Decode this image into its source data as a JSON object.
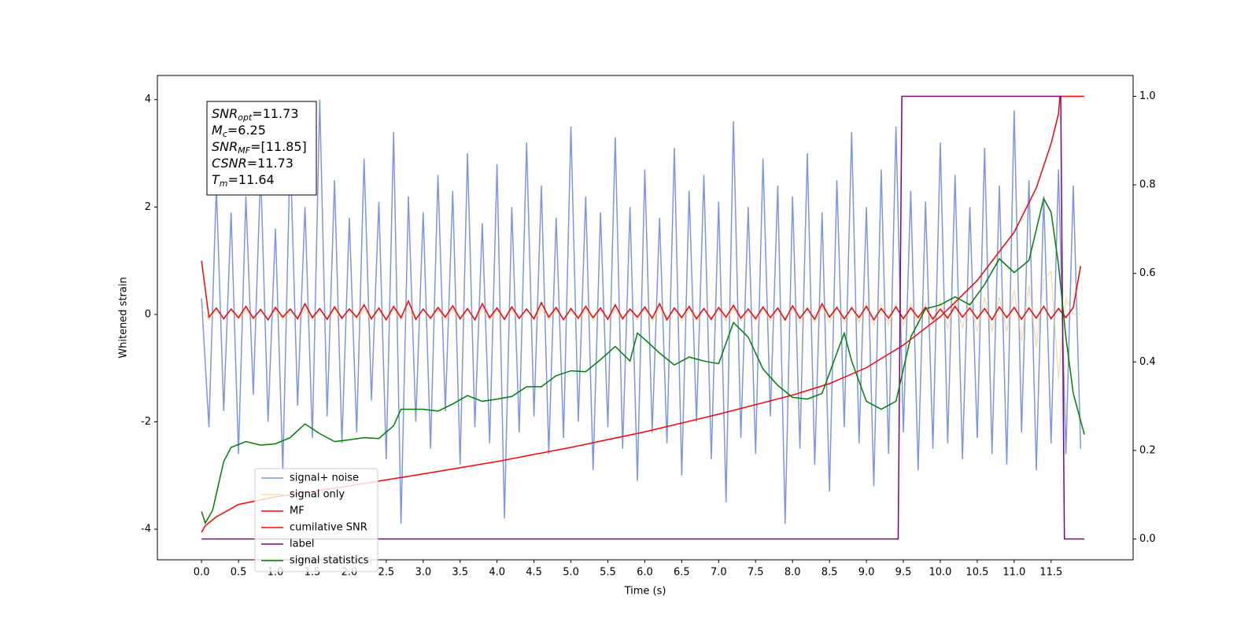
{
  "chart_data": {
    "type": "line",
    "xlabel": "Time (s)",
    "ylabel": "Whitened strain",
    "xlim": [
      -0.598,
      12.61
    ],
    "ylim": [
      -4.57,
      4.45
    ],
    "y2lim": [
      -0.047,
      1.047
    ],
    "xticks": [
      {
        "value": 0,
        "label": "0.0"
      },
      0.5,
      {
        "value": 1,
        "label": "1.0"
      },
      1.5,
      {
        "value": 2,
        "label": "2.0"
      },
      2.5,
      {
        "value": 3,
        "label": "3.0"
      },
      3.5,
      {
        "value": 4,
        "label": "4.0"
      },
      4.5,
      {
        "value": 5,
        "label": "5.0"
      },
      5.5,
      {
        "value": 6,
        "label": "6.0"
      },
      6.5,
      {
        "value": 7,
        "label": "7.0"
      },
      7.5,
      {
        "value": 8,
        "label": "8.0"
      },
      8.5,
      {
        "value": 9,
        "label": "9.0"
      },
      9.5,
      {
        "value": 10,
        "label": "10.0"
      },
      10.5,
      {
        "value": 11,
        "label": "11.0"
      },
      11.5
    ],
    "yticks": [
      -4,
      -2,
      0,
      2,
      4
    ],
    "y2ticks": [
      {
        "value": 0,
        "label": "0.0"
      },
      0.2,
      0.4,
      0.6,
      0.8,
      {
        "value": 1,
        "label": "1.0"
      }
    ],
    "legend": "lower left",
    "annotations": [
      {
        "symbol": "SNR",
        "subscript": "opt",
        "text": "=11.73"
      },
      {
        "symbol": "M",
        "subscript": "c",
        "text": "=6.25"
      },
      {
        "symbol": "SNR",
        "subscript": "MF",
        "text": "=[11.85]"
      },
      {
        "symbol": "CSNR",
        "subscript": "",
        "text": "=11.73"
      },
      {
        "symbol": "T",
        "subscript": "m",
        "text": "=11.64"
      }
    ],
    "series": [
      {
        "name": "signal+ noise",
        "color": "#7b95e7",
        "x": [
          0,
          0.1,
          0.2,
          0.3,
          0.4,
          0.5,
          0.6,
          0.7,
          0.8,
          0.9,
          1,
          1.1,
          1.2,
          1.3,
          1.4,
          1.5,
          1.6,
          1.7,
          1.8,
          1.9,
          2,
          2.1,
          2.2,
          2.3,
          2.4,
          2.5,
          2.6,
          2.7,
          2.8,
          2.9,
          3,
          3.1,
          3.2,
          3.3,
          3.4,
          3.5,
          3.6,
          3.7,
          3.8,
          3.9,
          4,
          4.1,
          4.2,
          4.3,
          4.4,
          4.5,
          4.6,
          4.7,
          4.8,
          4.9,
          5,
          5.1,
          5.2,
          5.3,
          5.4,
          5.5,
          5.6,
          5.7,
          5.8,
          5.9,
          6,
          6.1,
          6.2,
          6.3,
          6.4,
          6.5,
          6.6,
          6.7,
          6.8,
          6.9,
          7,
          7.1,
          7.2,
          7.3,
          7.4,
          7.5,
          7.6,
          7.7,
          7.8,
          7.9,
          8,
          8.1,
          8.2,
          8.3,
          8.4,
          8.5,
          8.6,
          8.7,
          8.8,
          8.9,
          9,
          9.1,
          9.2,
          9.3,
          9.4,
          9.5,
          9.6,
          9.7,
          9.8,
          9.9,
          10,
          10.1,
          10.2,
          10.3,
          10.4,
          10.5,
          10.6,
          10.7,
          10.8,
          10.9,
          11,
          11.1,
          11.2,
          11.3,
          11.4,
          11.5,
          11.6,
          11.7,
          11.8,
          11.9
        ],
        "values": [
          0.3,
          -2.1,
          2.4,
          -1.8,
          1.9,
          -2.6,
          2.2,
          -1.5,
          2.7,
          -2.0,
          1.6,
          -2.9,
          3.1,
          -1.7,
          2.0,
          -2.3,
          4.0,
          -1.9,
          2.5,
          -2.4,
          1.8,
          -2.2,
          2.9,
          -1.6,
          2.1,
          -2.7,
          3.4,
          -3.9,
          2.2,
          -2.0,
          1.9,
          -2.5,
          2.6,
          -1.8,
          2.3,
          -2.8,
          3.0,
          -2.1,
          1.7,
          -2.4,
          2.8,
          -3.8,
          2.0,
          -2.2,
          3.2,
          -1.9,
          2.4,
          -2.6,
          1.8,
          -2.3,
          3.5,
          -2.0,
          2.2,
          -2.9,
          1.9,
          -2.1,
          3.3,
          -2.5,
          2.0,
          -3.1,
          2.7,
          -2.2,
          1.8,
          -2.4,
          3.1,
          -3.0,
          2.3,
          -2.0,
          2.6,
          -2.7,
          2.1,
          -3.5,
          3.6,
          -2.3,
          2.0,
          -2.6,
          2.9,
          -1.9,
          2.4,
          -3.9,
          2.2,
          -2.5,
          3.0,
          -2.8,
          1.9,
          -3.3,
          2.5,
          -2.1,
          3.4,
          -2.4,
          2.0,
          -3.2,
          2.7,
          -2.6,
          3.5,
          -2.2,
          2.3,
          -2.9,
          2.1,
          -2.5,
          3.2,
          -2.4,
          2.6,
          -2.7,
          2.0,
          -2.3,
          3.1,
          -2.6,
          2.4,
          -2.8,
          3.8,
          -2.2,
          2.5,
          -2.9,
          2.2,
          -2.4,
          2.7,
          -2.6,
          2.4,
          -2.5
        ]
      },
      {
        "name": "signal only",
        "color": "#f7c978",
        "x": [
          0,
          0.1,
          0.2,
          0.3,
          0.4,
          0.5,
          0.6,
          0.7,
          0.8,
          0.9,
          1,
          1.1,
          1.2,
          1.3,
          1.4,
          1.5,
          1.6,
          1.7,
          1.8,
          1.9,
          2,
          2.1,
          2.2,
          2.3,
          2.4,
          2.5,
          2.6,
          2.7,
          2.8,
          2.9,
          3,
          3.1,
          3.2,
          3.3,
          3.4,
          3.5,
          3.6,
          3.7,
          3.8,
          3.9,
          4,
          4.1,
          4.2,
          4.3,
          4.4,
          4.5,
          4.6,
          4.7,
          4.8,
          4.9,
          5,
          5.1,
          5.2,
          5.3,
          5.4,
          5.5,
          5.6,
          5.7,
          5.8,
          5.9,
          6,
          6.1,
          6.2,
          6.3,
          6.4,
          6.5,
          6.6,
          6.7,
          6.8,
          6.9,
          7,
          7.1,
          7.2,
          7.3,
          7.4,
          7.5,
          7.6,
          7.7,
          7.8,
          7.9,
          8,
          8.1,
          8.2,
          8.3,
          8.4,
          8.5,
          8.6,
          8.7,
          8.8,
          8.9,
          9,
          9.1,
          9.2,
          9.3,
          9.4,
          9.5,
          9.6,
          9.7,
          9.8,
          9.9,
          10,
          10.1,
          10.2,
          10.3,
          10.4,
          10.5,
          10.6,
          10.7,
          10.8,
          10.9,
          11,
          11.1,
          11.2,
          11.3,
          11.4,
          11.5,
          11.6,
          11.7,
          11.8,
          11.9
        ],
        "values": [
          0.1,
          -0.1,
          0.1,
          -0.1,
          0.1,
          -0.1,
          0.1,
          -0.1,
          0.1,
          -0.1,
          0.1,
          -0.1,
          0.1,
          -0.1,
          0.1,
          -0.1,
          0.1,
          -0.1,
          0.1,
          -0.1,
          0.1,
          -0.1,
          0.1,
          -0.1,
          0.1,
          -0.1,
          0.1,
          -0.1,
          0.1,
          -0.1,
          0.1,
          -0.1,
          0.1,
          -0.1,
          0.1,
          -0.1,
          0.1,
          -0.1,
          0.1,
          -0.1,
          0.1,
          -0.1,
          0.1,
          -0.1,
          0.1,
          -0.1,
          0.1,
          -0.1,
          0.1,
          -0.1,
          0.1,
          -0.1,
          0.1,
          -0.1,
          0.1,
          -0.1,
          0.1,
          -0.1,
          0.1,
          -0.1,
          0.12,
          -0.12,
          0.12,
          -0.12,
          0.12,
          -0.12,
          0.12,
          -0.12,
          0.12,
          -0.12,
          0.12,
          -0.12,
          0.12,
          -0.12,
          0.12,
          -0.12,
          0.12,
          -0.12,
          0.12,
          -0.12,
          0.15,
          -0.15,
          0.15,
          -0.15,
          0.15,
          -0.15,
          0.15,
          -0.15,
          0.15,
          -0.15,
          0.2,
          -0.2,
          0.2,
          -0.2,
          0.2,
          -0.2,
          0.2,
          -0.2,
          0.2,
          -0.2,
          0.25,
          -0.25,
          0.25,
          -0.25,
          0.25,
          -0.32,
          0.32,
          -0.32,
          0.32,
          -0.32,
          0.45,
          -0.5,
          0.55,
          -0.6,
          0.65,
          0.8,
          -1.2,
          0.3,
          0,
          0
        ]
      },
      {
        "name": "MF",
        "color": "#ff0000",
        "x": [
          0,
          0.1,
          0.2,
          0.3,
          0.4,
          0.5,
          0.6,
          0.7,
          0.8,
          0.9,
          1,
          1.1,
          1.2,
          1.3,
          1.4,
          1.5,
          1.6,
          1.7,
          1.8,
          1.9,
          2,
          2.1,
          2.2,
          2.3,
          2.4,
          2.5,
          2.6,
          2.7,
          2.8,
          2.9,
          3,
          3.1,
          3.2,
          3.3,
          3.4,
          3.5,
          3.6,
          3.7,
          3.8,
          3.9,
          4,
          4.1,
          4.2,
          4.3,
          4.4,
          4.5,
          4.6,
          4.7,
          4.8,
          4.9,
          5,
          5.1,
          5.2,
          5.3,
          5.4,
          5.5,
          5.6,
          5.7,
          5.8,
          5.9,
          6,
          6.1,
          6.2,
          6.3,
          6.4,
          6.5,
          6.6,
          6.7,
          6.8,
          6.9,
          7,
          7.1,
          7.2,
          7.3,
          7.4,
          7.5,
          7.6,
          7.7,
          7.8,
          7.9,
          8,
          8.1,
          8.2,
          8.3,
          8.4,
          8.5,
          8.6,
          8.7,
          8.8,
          8.9,
          9,
          9.1,
          9.2,
          9.3,
          9.4,
          9.5,
          9.6,
          9.7,
          9.8,
          9.9,
          10,
          10.1,
          10.2,
          10.3,
          10.4,
          10.5,
          10.6,
          10.7,
          10.8,
          10.9,
          11,
          11.1,
          11.2,
          11.3,
          11.4,
          11.5,
          11.6,
          11.7,
          11.8,
          11.9
        ],
        "values": [
          1.0,
          -0.05,
          0.12,
          -0.08,
          0.1,
          -0.06,
          0.15,
          -0.07,
          0.09,
          -0.1,
          0.13,
          -0.05,
          0.1,
          -0.08,
          0.2,
          -0.06,
          0.11,
          -0.09,
          0.14,
          -0.07,
          0.1,
          -0.05,
          0.18,
          -0.08,
          0.12,
          -0.1,
          0.15,
          -0.06,
          0.25,
          -0.09,
          0.1,
          -0.07,
          0.13,
          -0.05,
          0.16,
          -0.08,
          0.11,
          -0.1,
          0.2,
          -0.06,
          0.12,
          -0.09,
          0.14,
          -0.07,
          0.1,
          -0.08,
          0.22,
          -0.05,
          0.13,
          -0.1,
          0.11,
          -0.07,
          0.15,
          -0.06,
          0.12,
          -0.09,
          0.18,
          -0.08,
          0.1,
          -0.05,
          0.14,
          -0.07,
          0.2,
          -0.1,
          0.12,
          -0.06,
          0.15,
          -0.08,
          0.11,
          -0.09,
          0.13,
          -0.05,
          0.17,
          -0.07,
          0.1,
          -0.08,
          0.14,
          -0.06,
          0.12,
          -0.1,
          0.16,
          -0.07,
          0.11,
          -0.09,
          0.2,
          -0.05,
          0.13,
          -0.08,
          0.12,
          -0.06,
          0.15,
          -0.1,
          0.11,
          -0.07,
          0.14,
          -0.08,
          0.12,
          -0.06,
          0.13,
          -0.09,
          0.1,
          -0.07,
          0.15,
          -0.05,
          0.12,
          -0.08,
          0.11,
          -0.1,
          0.14,
          -0.06,
          0.13,
          -0.09,
          0.12,
          -0.07,
          0.15,
          -0.08,
          0.11,
          -0.06,
          0.13,
          0.9
        ]
      },
      {
        "name": "cumilative SNR",
        "color": "#ff0000",
        "axis": "y2",
        "x": [
          0,
          0.05,
          0.2,
          0.5,
          1,
          2,
          3,
          4,
          5,
          6,
          7,
          8,
          8.5,
          9,
          9.5,
          10,
          10.5,
          11,
          11.3,
          11.5,
          11.6,
          11.62,
          11.95
        ],
        "values": [
          0.015,
          0.03,
          0.05,
          0.078,
          0.095,
          0.12,
          0.147,
          0.175,
          0.207,
          0.242,
          0.282,
          0.325,
          0.351,
          0.387,
          0.438,
          0.502,
          0.584,
          0.693,
          0.793,
          0.893,
          0.96,
          1.0,
          1.0
        ]
      },
      {
        "name": "label",
        "color": "#800080",
        "axis": "y2",
        "x": [
          0,
          9.43,
          9.48,
          11.63,
          11.68,
          11.95
        ],
        "values": [
          0,
          0,
          1,
          1,
          0,
          0
        ]
      },
      {
        "name": "signal statistics",
        "color": "#008000",
        "axis": "y2",
        "x": [
          0,
          0.05,
          0.15,
          0.3,
          0.4,
          0.6,
          0.8,
          1.0,
          1.2,
          1.4,
          1.6,
          1.8,
          2.0,
          2.2,
          2.4,
          2.6,
          2.7,
          3.0,
          3.2,
          3.4,
          3.6,
          3.8,
          4.0,
          4.2,
          4.4,
          4.6,
          4.8,
          5.0,
          5.2,
          5.4,
          5.6,
          5.8,
          5.9,
          6.0,
          6.2,
          6.4,
          6.6,
          6.8,
          7.0,
          7.2,
          7.4,
          7.6,
          7.8,
          8.0,
          8.2,
          8.4,
          8.6,
          8.7,
          8.8,
          9.0,
          9.2,
          9.4,
          9.6,
          9.8,
          10.0,
          10.2,
          10.4,
          10.6,
          10.8,
          11.0,
          11.2,
          11.4,
          11.5,
          11.6,
          11.7,
          11.8,
          11.95
        ],
        "values": [
          0.062,
          0.036,
          0.065,
          0.175,
          0.207,
          0.22,
          0.212,
          0.215,
          0.229,
          0.26,
          0.238,
          0.22,
          0.224,
          0.229,
          0.227,
          0.256,
          0.293,
          0.293,
          0.289,
          0.305,
          0.324,
          0.311,
          0.316,
          0.322,
          0.344,
          0.344,
          0.369,
          0.38,
          0.378,
          0.405,
          0.435,
          0.402,
          0.465,
          0.451,
          0.42,
          0.393,
          0.411,
          0.402,
          0.396,
          0.489,
          0.456,
          0.384,
          0.347,
          0.32,
          0.316,
          0.329,
          0.42,
          0.465,
          0.402,
          0.311,
          0.293,
          0.311,
          0.456,
          0.52,
          0.529,
          0.547,
          0.529,
          0.575,
          0.633,
          0.602,
          0.629,
          0.769,
          0.738,
          0.62,
          0.456,
          0.329,
          0.236
        ]
      }
    ]
  }
}
